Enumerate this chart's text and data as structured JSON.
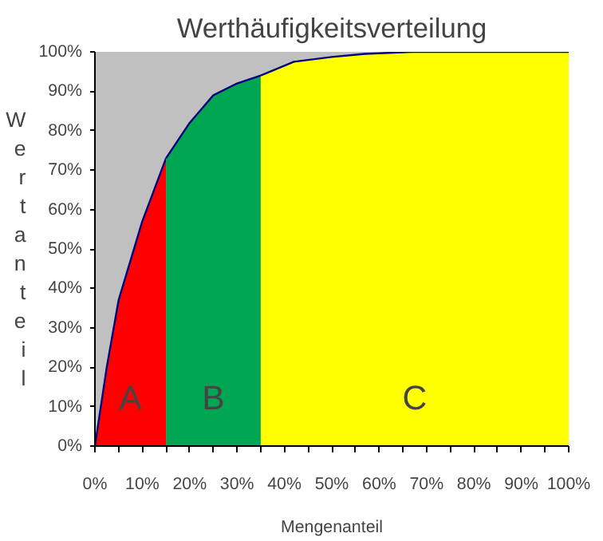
{
  "chart_data": {
    "type": "area",
    "title": "Werthäufigkeitsverteilung",
    "xlabel": "Mengenanteil",
    "ylabel": "Wertanteil",
    "series": [
      {
        "color": "#ff0000",
        "x": [
          0,
          2.5,
          5,
          10,
          15
        ],
        "values": [
          0,
          20,
          37,
          57,
          73
        ]
      },
      {
        "color": "#00a651",
        "x": [
          15,
          20,
          25,
          30,
          35
        ],
        "values": [
          73,
          82,
          89,
          92,
          94
        ]
      },
      {
        "color": "#ffff00",
        "x": [
          35,
          42,
          50,
          57,
          67,
          100
        ],
        "values": [
          94,
          97.5,
          98.7,
          99.5,
          100,
          100
        ]
      }
    ],
    "annotations": [
      "A",
      "B",
      "C"
    ],
    "xlim": [
      0,
      100
    ],
    "ylim": [
      0,
      100
    ],
    "xticks": [
      {
        "value": 0,
        "label": "0%"
      },
      {
        "value": 5,
        "label": null
      },
      {
        "value": 10,
        "label": "10%"
      },
      {
        "value": 15,
        "label": null
      },
      {
        "value": 20,
        "label": "20%"
      },
      {
        "value": 25,
        "label": null
      },
      {
        "value": 30,
        "label": "30%"
      },
      {
        "value": 35,
        "label": null
      },
      {
        "value": 40,
        "label": "40%"
      },
      {
        "value": 45,
        "label": null
      },
      {
        "value": 50,
        "label": "50%"
      },
      {
        "value": 55,
        "label": null
      },
      {
        "value": 60,
        "label": "60%"
      },
      {
        "value": 65,
        "label": null
      },
      {
        "value": 70,
        "label": "70%"
      },
      {
        "value": 75,
        "label": null
      },
      {
        "value": 80,
        "label": "80%"
      },
      {
        "value": 85,
        "label": null
      },
      {
        "value": 90,
        "label": "90%"
      },
      {
        "value": 95,
        "label": null
      },
      {
        "value": 100,
        "label": "100%"
      }
    ],
    "yticks": [
      {
        "value": 0,
        "label": "0%"
      },
      {
        "value": 10,
        "label": "10%"
      },
      {
        "value": 20,
        "label": "20%"
      },
      {
        "value": 30,
        "label": "30%"
      },
      {
        "value": 40,
        "label": "40%"
      },
      {
        "value": 50,
        "label": "50%"
      },
      {
        "value": 60,
        "label": "60%"
      },
      {
        "value": 70,
        "label": "70%"
      },
      {
        "value": 80,
        "label": "80%"
      },
      {
        "value": 90,
        "label": "90%"
      },
      {
        "value": 100,
        "label": "100%"
      }
    ],
    "grid": false
  }
}
